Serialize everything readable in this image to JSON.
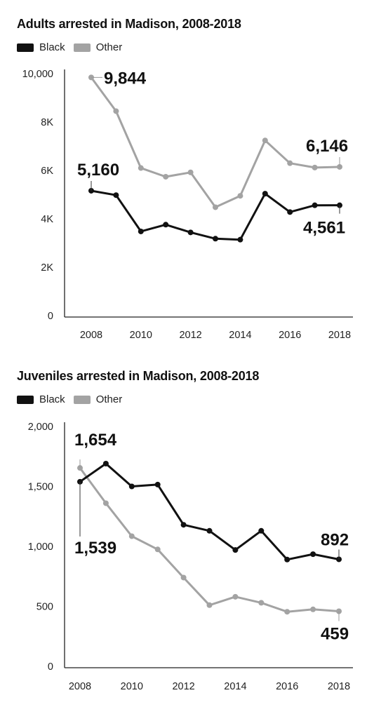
{
  "chart_data": [
    {
      "type": "line",
      "title": "Adults arrested in Madison, 2008-2018",
      "x": [
        2008,
        2009,
        2010,
        2011,
        2012,
        2013,
        2014,
        2015,
        2016,
        2017,
        2018
      ],
      "series": [
        {
          "name": "Black",
          "color": "#111111",
          "values": [
            5160,
            4980,
            3480,
            3760,
            3440,
            3180,
            3140,
            5040,
            4280,
            4560,
            4561
          ]
        },
        {
          "name": "Other",
          "color": "#a3a3a3",
          "values": [
            9844,
            8450,
            6100,
            5740,
            5920,
            4480,
            4950,
            7240,
            6300,
            6120,
            6146
          ]
        }
      ],
      "ylim": [
        0,
        10000
      ],
      "yticks": [
        {
          "value": 0,
          "label": "0"
        },
        {
          "value": 2000,
          "label": "2K"
        },
        {
          "value": 4000,
          "label": "4K"
        },
        {
          "value": 6000,
          "label": "6K"
        },
        {
          "value": 8000,
          "label": "8K"
        },
        {
          "value": 10000,
          "label": "10,000"
        }
      ],
      "xticks": [
        {
          "value": 2008,
          "label": "2008"
        },
        {
          "value": 2010,
          "label": "2010"
        },
        {
          "value": 2012,
          "label": "2012"
        },
        {
          "value": 2014,
          "label": "2014"
        },
        {
          "value": 2016,
          "label": "2016"
        },
        {
          "value": 2018,
          "label": "2018"
        }
      ],
      "annotations": [
        {
          "series": "Other",
          "x": 2008,
          "text": "9,844"
        },
        {
          "series": "Black",
          "x": 2008,
          "text": "5,160"
        },
        {
          "series": "Other",
          "x": 2018,
          "text": "6,146"
        },
        {
          "series": "Black",
          "x": 2018,
          "text": "4,561"
        }
      ],
      "legend": "top-left",
      "grid": false
    },
    {
      "type": "line",
      "title": "Juveniles arrested in Madison, 2008-2018",
      "x": [
        2008,
        2009,
        2010,
        2011,
        2012,
        2013,
        2014,
        2015,
        2016,
        2017,
        2018
      ],
      "series": [
        {
          "name": "Black",
          "color": "#111111",
          "values": [
            1539,
            1690,
            1500,
            1515,
            1180,
            1130,
            970,
            1130,
            890,
            935,
            892
          ]
        },
        {
          "name": "Other",
          "color": "#a3a3a3",
          "values": [
            1654,
            1360,
            1085,
            975,
            740,
            510,
            580,
            530,
            455,
            475,
            459
          ]
        }
      ],
      "ylim": [
        0,
        2000
      ],
      "yticks": [
        {
          "value": 0,
          "label": "0"
        },
        {
          "value": 500,
          "label": "500"
        },
        {
          "value": 1000,
          "label": "1,000"
        },
        {
          "value": 1500,
          "label": "1,500"
        },
        {
          "value": 2000,
          "label": "2,000"
        }
      ],
      "xticks": [
        {
          "value": 2008,
          "label": "2008"
        },
        {
          "value": 2010,
          "label": "2010"
        },
        {
          "value": 2012,
          "label": "2012"
        },
        {
          "value": 2014,
          "label": "2014"
        },
        {
          "value": 2016,
          "label": "2016"
        },
        {
          "value": 2018,
          "label": "2018"
        }
      ],
      "annotations": [
        {
          "series": "Other",
          "x": 2008,
          "text": "1,654"
        },
        {
          "series": "Black",
          "x": 2008,
          "text": "1,539"
        },
        {
          "series": "Black",
          "x": 2018,
          "text": "892"
        },
        {
          "series": "Other",
          "x": 2018,
          "text": "459"
        }
      ],
      "legend": "top-left",
      "grid": false
    }
  ]
}
